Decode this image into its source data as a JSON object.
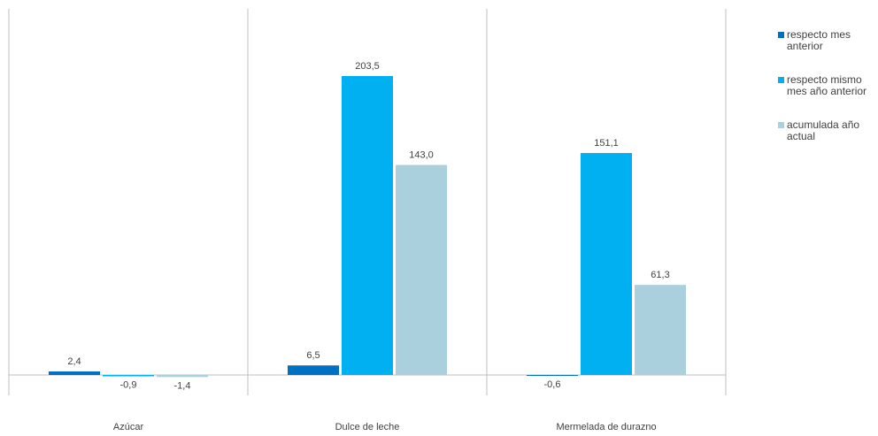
{
  "chart_data": {
    "type": "bar",
    "categories": [
      "Azúcar",
      "Dulce de leche",
      "Mermelada de durazno"
    ],
    "series": [
      {
        "name": "respecto mes anterior",
        "values": [
          2.4,
          6.5,
          -0.6
        ],
        "labels": [
          "2,4",
          "6,5",
          "-0,6"
        ],
        "color": "#0070c0"
      },
      {
        "name": "respecto mismo mes año anterior",
        "values": [
          -0.9,
          203.5,
          151.1
        ],
        "labels": [
          "-0,9",
          "203,5",
          "151,1"
        ],
        "color": "#00b0f0"
      },
      {
        "name": "acumulada año actual",
        "values": [
          -1.4,
          143.0,
          61.3
        ],
        "labels": [
          "-1,4",
          "143,0",
          "61,3"
        ],
        "color": "#a9d0dc"
      }
    ],
    "legend": {
      "position": "right",
      "items": [
        {
          "text": "respecto mes anterior",
          "lines": [
            "respecto mes",
            "anterior"
          ],
          "color": "#0070c0"
        },
        {
          "text": "respecto mismo mes año anterior",
          "lines": [
            "respecto mismo",
            "mes año anterior"
          ],
          "color": "#00b0f0"
        },
        {
          "text": "acumulada año actual",
          "lines": [
            "acumulada año",
            "actual"
          ],
          "color": "#a9d0dc"
        }
      ]
    },
    "ylim": [
      -5,
      215
    ],
    "grid": false
  }
}
